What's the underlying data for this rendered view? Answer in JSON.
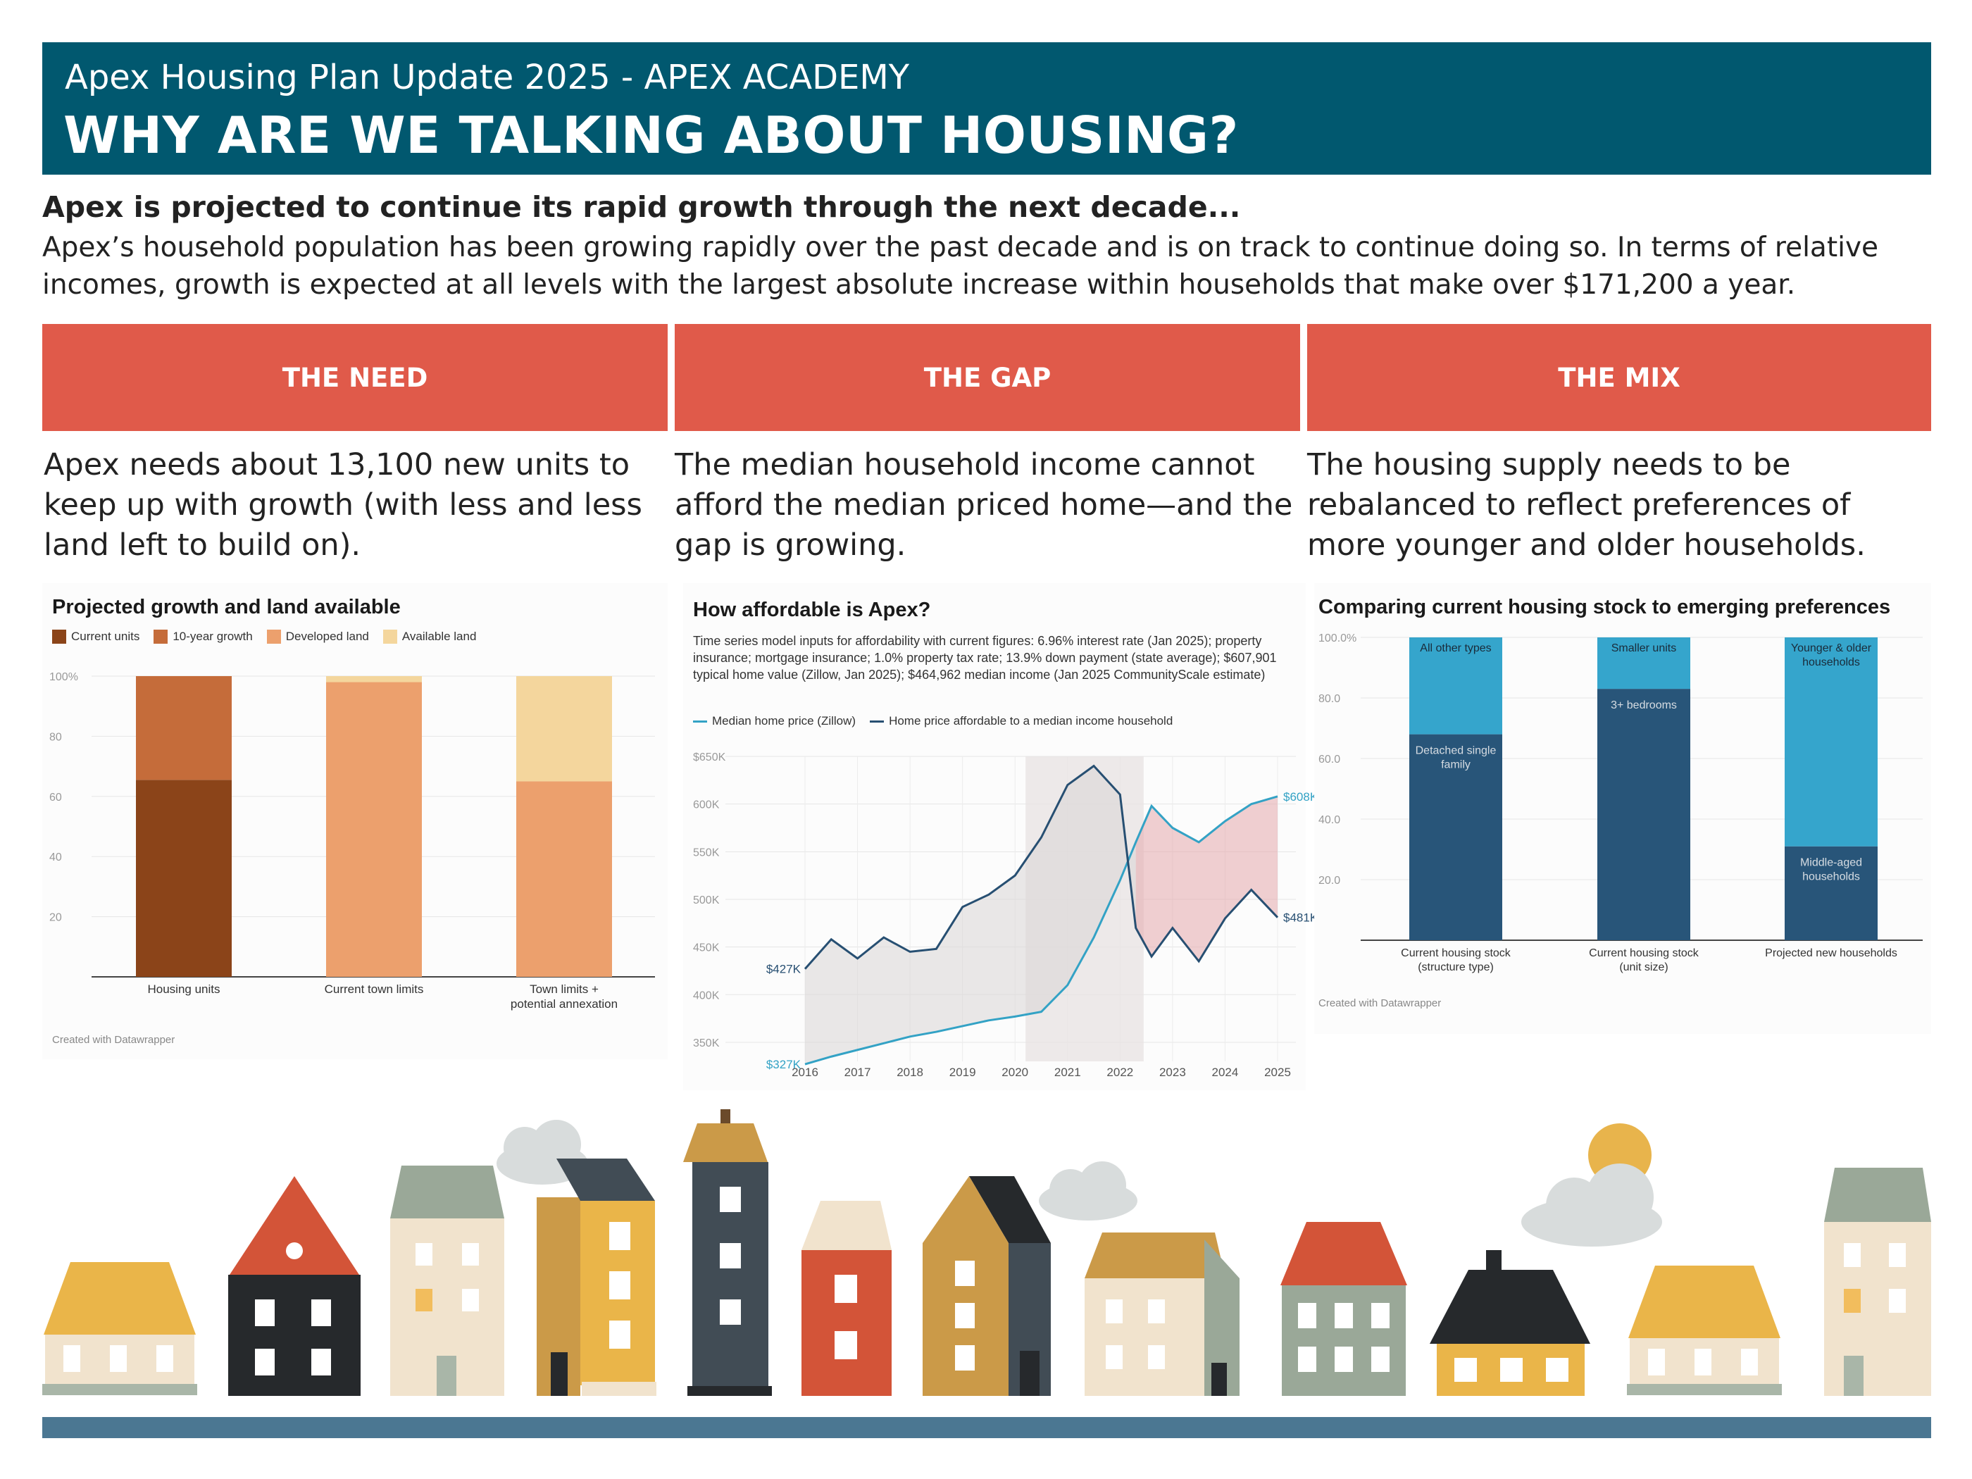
{
  "header": {
    "subtitle": "Apex Housing Plan Update 2025 - APEX ACADEMY",
    "title": "WHY ARE WE TALKING ABOUT HOUSING?"
  },
  "intro": {
    "heading": "Apex is projected to continue its rapid growth through the next decade...",
    "body": "Apex’s household population has been growing rapidly over the past decade and is on track to continue doing so. In terms of relative incomes, growth is expected at all levels with the largest absolute increase within households that make over $171,200 a year."
  },
  "columns": [
    {
      "label": "THE NEED",
      "text": "Apex needs about 13,100 new units to keep up with growth (with less and less land left to build on)."
    },
    {
      "label": "THE GAP",
      "text": "The median household income cannot afford the median priced home—and the gap is growing."
    },
    {
      "label": "THE MIX",
      "text": "The housing supply needs to be rebalanced to reflect preferences of more younger and older households."
    }
  ],
  "colors": {
    "header": "#01586f",
    "accent": "#e05a4a",
    "current_units": "#8b4419",
    "growth": "#c56c3a",
    "developed": "#eca06d",
    "available": "#f4d69d",
    "median_price": "#33a2c5",
    "affordable": "#274f72",
    "dark_blue": "#285579",
    "light_blue": "#35a5cc"
  },
  "credit": "Created with Datawrapper",
  "chart_data": [
    {
      "type": "bar",
      "stacked": true,
      "title": "Projected growth and land available",
      "categories": [
        "Housing units",
        "Current town limits",
        "Town limits + potential annexation"
      ],
      "ylim": [
        0,
        100
      ],
      "yticks": [
        "100%",
        "80",
        "60",
        "40",
        "20"
      ],
      "series": [
        {
          "name": "Current units",
          "values": [
            65.5,
            0,
            0
          ]
        },
        {
          "name": "10-year growth",
          "values": [
            34.5,
            0,
            0
          ]
        },
        {
          "name": "Developed land",
          "values": [
            0,
            98,
            65
          ]
        },
        {
          "name": "Available land",
          "values": [
            0,
            2,
            35
          ]
        }
      ]
    },
    {
      "type": "line",
      "title": "How affordable is Apex?",
      "note": "Time series model inputs for affordability with current figures: 6.96% interest rate (Jan 2025); property insurance; mortgage insurance; 1.0% property tax rate; 13.9% down payment (state average); $607,901 typical home value (Zillow, Jan 2025); $464,962 median income (Jan 2025 CommunityScale estimate)",
      "x": [
        2016,
        2016.5,
        2017,
        2017.5,
        2018,
        2018.5,
        2019,
        2019.5,
        2020,
        2020.5,
        2021,
        2021.5,
        2022,
        2022.3,
        2022.6,
        2023,
        2023.5,
        2024,
        2024.5,
        2025
      ],
      "xticks": [
        "2016",
        "2017",
        "2018",
        "2019",
        "2020",
        "2021",
        "2022",
        "2023",
        "2024",
        "2025"
      ],
      "yticks": [
        "$650K",
        "600K",
        "550K",
        "500K",
        "450K",
        "400K",
        "350K"
      ],
      "ylim": [
        320,
        650
      ],
      "series": [
        {
          "name": "Median home price (Zillow)",
          "values": [
            327,
            335,
            342,
            349,
            356,
            361,
            367,
            373,
            377,
            382,
            410,
            460,
            520,
            560,
            598,
            575,
            560,
            582,
            600,
            608
          ]
        },
        {
          "name": "Home price affordable to a median income household",
          "values": [
            427,
            458,
            438,
            460,
            445,
            448,
            492,
            505,
            525,
            565,
            620,
            640,
            610,
            470,
            440,
            470,
            435,
            480,
            510,
            481
          ]
        }
      ],
      "labels": {
        "start_price": "$327K",
        "start_afford": "$427K",
        "end_price": "$608K",
        "end_afford": "$481K"
      }
    },
    {
      "type": "bar",
      "stacked": true,
      "title": "Comparing current housing stock to emerging preferences",
      "categories": [
        "Current housing stock (structure type)",
        "Current housing stock (unit size)",
        "Projected new households"
      ],
      "ylim": [
        0,
        100
      ],
      "yticks": [
        "100.0%",
        "80.0",
        "60.0",
        "40.0",
        "20.0"
      ],
      "bars": [
        {
          "bottom_label": "Detached single family",
          "bottom": 68,
          "top_label": "All other types",
          "top": 32
        },
        {
          "bottom_label": "3+ bedrooms",
          "bottom": 83,
          "top_label": "Smaller units",
          "top": 17
        },
        {
          "bottom_label": "Middle-aged households",
          "bottom": 31,
          "top_label": "Younger & older households",
          "top": 69
        }
      ]
    }
  ]
}
